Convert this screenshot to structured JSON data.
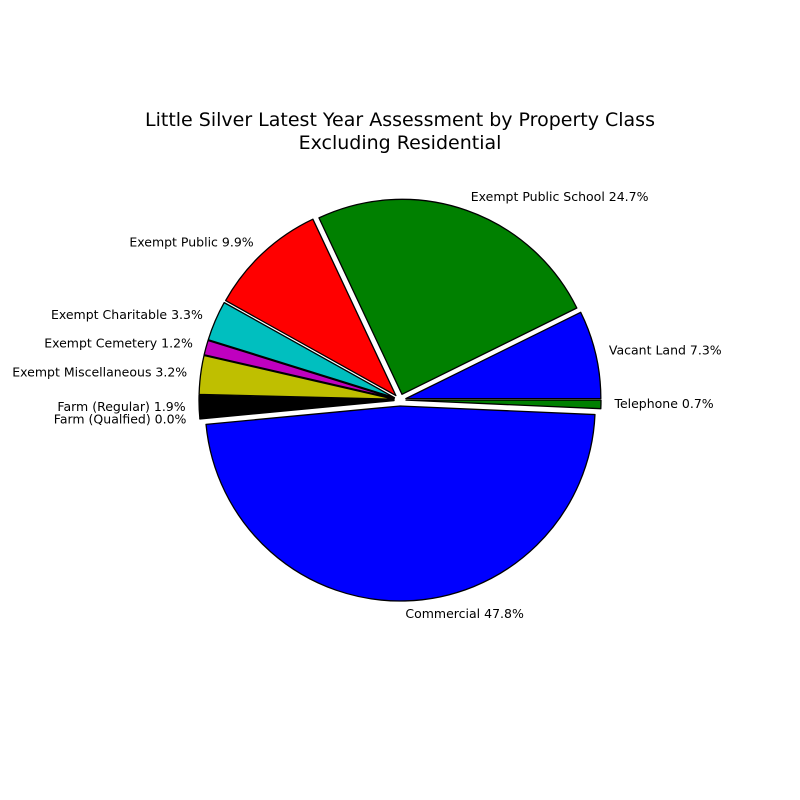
{
  "chart_data": {
    "type": "pie",
    "title": "Little Silver Latest Year Assessment by Property Class",
    "subtitle": "Excluding Residential",
    "slices": [
      {
        "label": "Vacant Land 7.3%",
        "value": 7.3,
        "color": "#0000ff"
      },
      {
        "label": "Exempt Public School 24.7%",
        "value": 24.7,
        "color": "#008000"
      },
      {
        "label": "Exempt Public 9.9%",
        "value": 9.9,
        "color": "#ff0000"
      },
      {
        "label": "Exempt Charitable 3.3%",
        "value": 3.3,
        "color": "#00bfbf"
      },
      {
        "label": "Exempt Cemetery 1.2%",
        "value": 1.2,
        "color": "#bf00bf"
      },
      {
        "label": "Exempt Miscellaneous 3.2%",
        "value": 3.2,
        "color": "#bfbf00"
      },
      {
        "label": "Farm (Regular) 1.9%",
        "value": 1.9,
        "color": "#000000"
      },
      {
        "label": "Farm (Qualfied) 0.0%",
        "value": 0.0,
        "color": "#ffffff"
      },
      {
        "label": "Commercial 47.8%",
        "value": 47.8,
        "color": "#0000ff"
      },
      {
        "label": "Telephone 0.7%",
        "value": 0.7,
        "color": "#008000"
      }
    ]
  }
}
